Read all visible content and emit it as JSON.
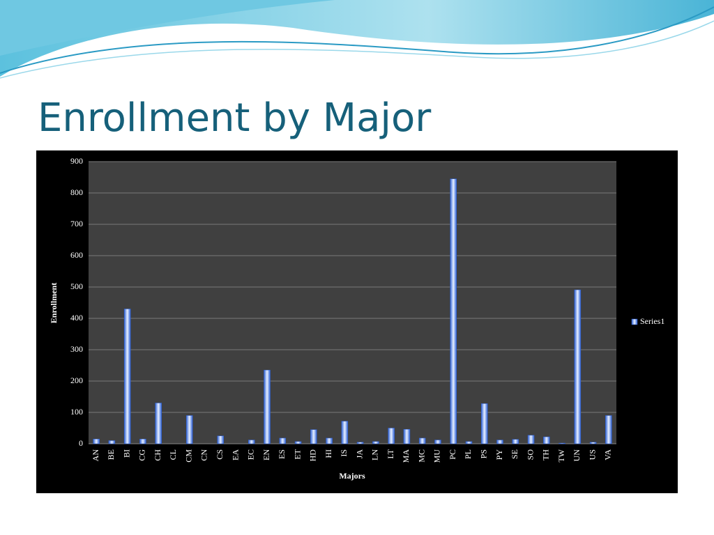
{
  "title": "Enrollment by Major",
  "chart_data": {
    "type": "bar",
    "x_label": "Majors",
    "y_label": "Enrollment",
    "categories": [
      "AN",
      "BE",
      "BI",
      "CG",
      "CH",
      "CL",
      "CM",
      "CN",
      "CS",
      "EA",
      "EC",
      "EN",
      "ES",
      "ET",
      "HD",
      "HI",
      "IS",
      "JA",
      "LN",
      "LT",
      "MA",
      "MC",
      "MU",
      "PC",
      "PL",
      "PS",
      "PY",
      "SE",
      "SO",
      "TH",
      "TW",
      "UN",
      "US",
      "VA"
    ],
    "series": [
      {
        "name": "Series1",
        "color": "#2f62d6",
        "values": [
          15,
          10,
          430,
          15,
          130,
          0,
          90,
          0,
          25,
          0,
          12,
          235,
          18,
          7,
          45,
          18,
          72,
          5,
          7,
          50,
          46,
          18,
          12,
          845,
          7,
          128,
          12,
          14,
          27,
          22,
          2,
          491,
          5,
          90
        ]
      }
    ],
    "ylim": [
      0,
      900
    ],
    "yticks": [
      0,
      100,
      200,
      300,
      400,
      500,
      600,
      700,
      800,
      900
    ],
    "grid": true,
    "legend": "right"
  }
}
